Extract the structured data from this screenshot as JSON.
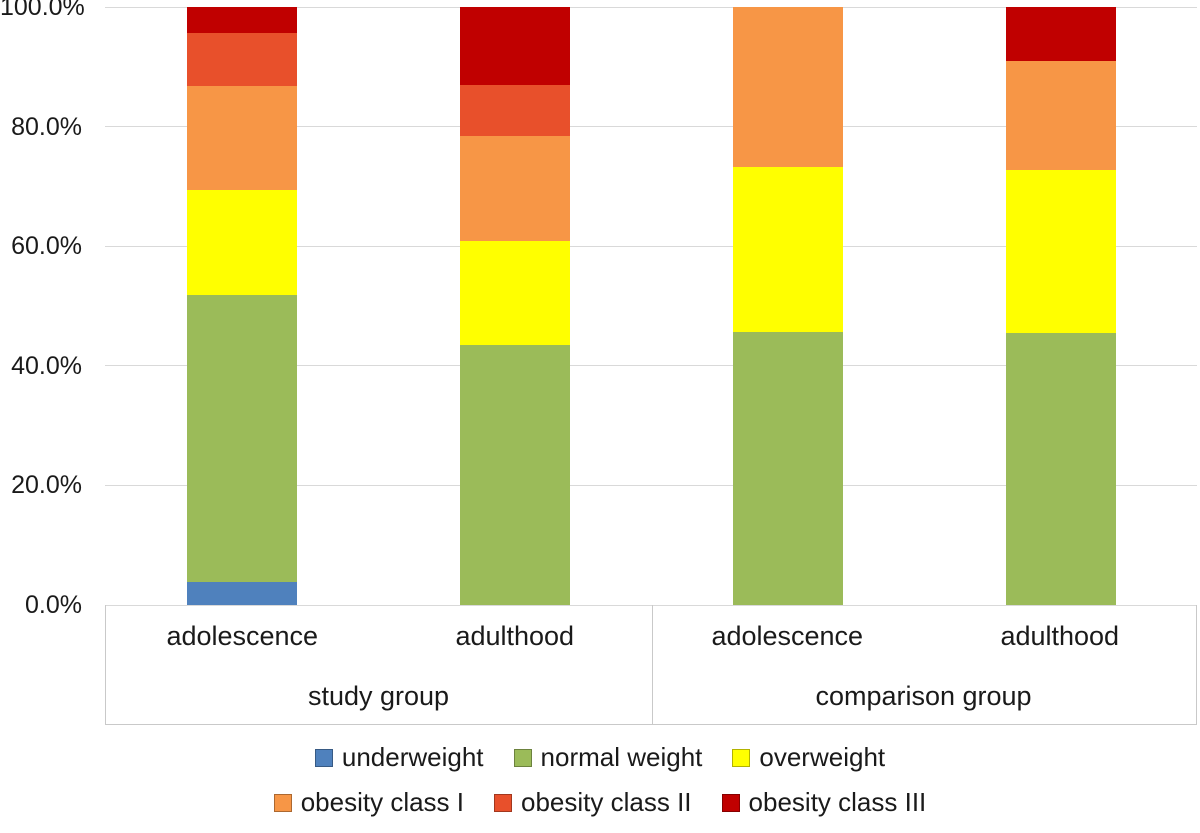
{
  "chart_data": {
    "type": "bar",
    "variant": "100-percent-stacked-column",
    "title": "",
    "xlabel": "",
    "ylabel": "",
    "ylim": [
      0,
      100
    ],
    "grid": true,
    "legend_position": "bottom",
    "y_ticks": [
      {
        "value": 0,
        "label": "0.0%"
      },
      {
        "value": 20,
        "label": "20.0%"
      },
      {
        "value": 40,
        "label": "40.0%"
      },
      {
        "value": 60,
        "label": "60.0%"
      },
      {
        "value": 80,
        "label": "80.0%"
      },
      {
        "value": 100,
        "label": "100.0%"
      }
    ],
    "groups": [
      {
        "label": "study group",
        "categories": [
          "adolescence",
          "adulthood"
        ]
      },
      {
        "label": "comparison group",
        "categories": [
          "adolescence",
          "adulthood"
        ]
      }
    ],
    "columns": [
      "study group / adolescence",
      "study group / adulthood",
      "comparison group / adolescence",
      "comparison group / adulthood"
    ],
    "series": [
      {
        "name": "underweight",
        "color": "#4f81bd",
        "values": [
          3.8,
          0.0,
          0.0,
          0.0
        ]
      },
      {
        "name": "normal weight",
        "color": "#9bbb59",
        "values": [
          48.0,
          43.5,
          45.7,
          45.5
        ]
      },
      {
        "name": "overweight",
        "color": "#ffff00",
        "values": [
          17.6,
          17.4,
          27.6,
          27.2
        ]
      },
      {
        "name": "obesity class I",
        "color": "#f79646",
        "values": [
          17.4,
          17.6,
          26.7,
          18.2
        ]
      },
      {
        "name": "obesity class II",
        "color": "#e8502b",
        "values": [
          8.9,
          8.5,
          0.0,
          0.0
        ]
      },
      {
        "name": "obesity class III",
        "color": "#c00000",
        "values": [
          4.3,
          13.0,
          0.0,
          9.1
        ]
      }
    ],
    "legend_rows": [
      [
        "underweight",
        "normal weight",
        "overweight"
      ],
      [
        "obesity class I",
        "obesity class II",
        "obesity class III"
      ]
    ],
    "colors": {
      "grid": "#d9d9d9",
      "axis_border": "#c9c9c9",
      "text": "#1a1a1a",
      "background": "#ffffff"
    }
  }
}
